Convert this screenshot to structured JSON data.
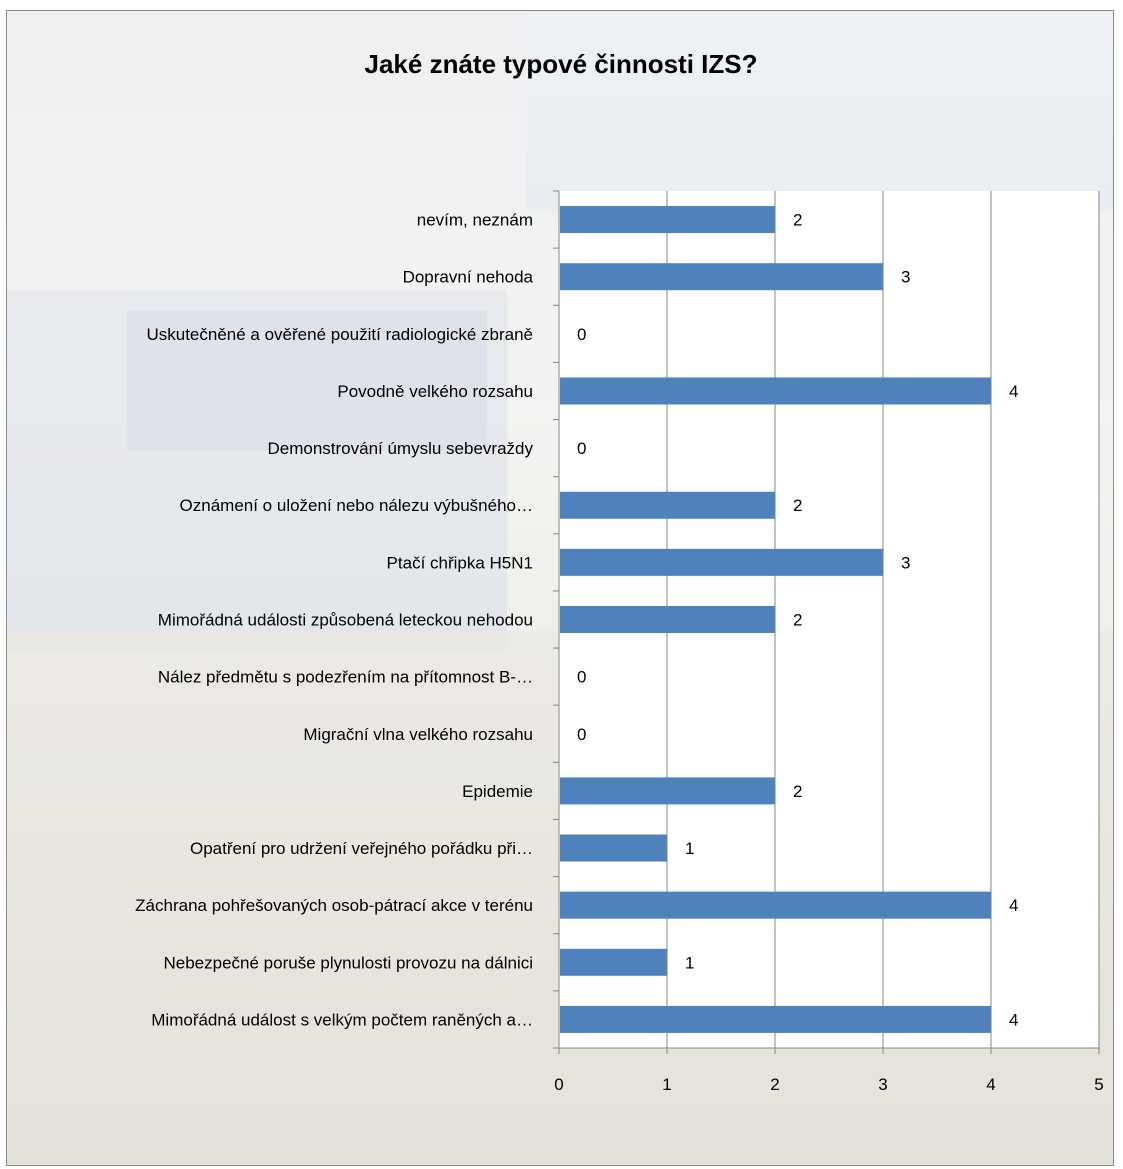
{
  "chart_data": {
    "type": "bar",
    "orientation": "horizontal",
    "title": "Jaké znáte typové činnosti IZS?",
    "xlabel": "",
    "ylabel": "",
    "xlim": [
      0,
      5
    ],
    "x_ticks": [
      "0",
      "1",
      "2",
      "3",
      "4",
      "5"
    ],
    "grid": true,
    "legend": "none",
    "bar_color": "#4f81bd",
    "categories": [
      "nevím, neznám",
      "Dopravní nehoda",
      "Uskutečněné a ověřené použití radiologické zbraně",
      "Povodně velkého rozsahu",
      "Demonstrování úmyslu sebevraždy",
      "Oznámení o uložení nebo nálezu výbušného…",
      "Ptačí chřipka H5N1",
      "Mimořádná události způsobená leteckou nehodou",
      "Nález předmětu s podezřením na přítomnost B-…",
      "Migrační vlna velkého rozsahu",
      "Epidemie",
      "Opatření pro udržení veřejného pořádku při…",
      "Záchrana pohřešovaných osob-pátrací akce v terénu",
      "Nebezpečné poruše plynulosti provozu na dálnici",
      "Mimořádná událost s velkým počtem raněných a…"
    ],
    "values": [
      2,
      3,
      0,
      4,
      0,
      2,
      3,
      2,
      0,
      0,
      2,
      1,
      4,
      1,
      4
    ],
    "data_labels": [
      "2",
      "3",
      "0",
      "4",
      "0",
      "2",
      "3",
      "2",
      "0",
      "0",
      "2",
      "1",
      "4",
      "1",
      "4"
    ]
  }
}
